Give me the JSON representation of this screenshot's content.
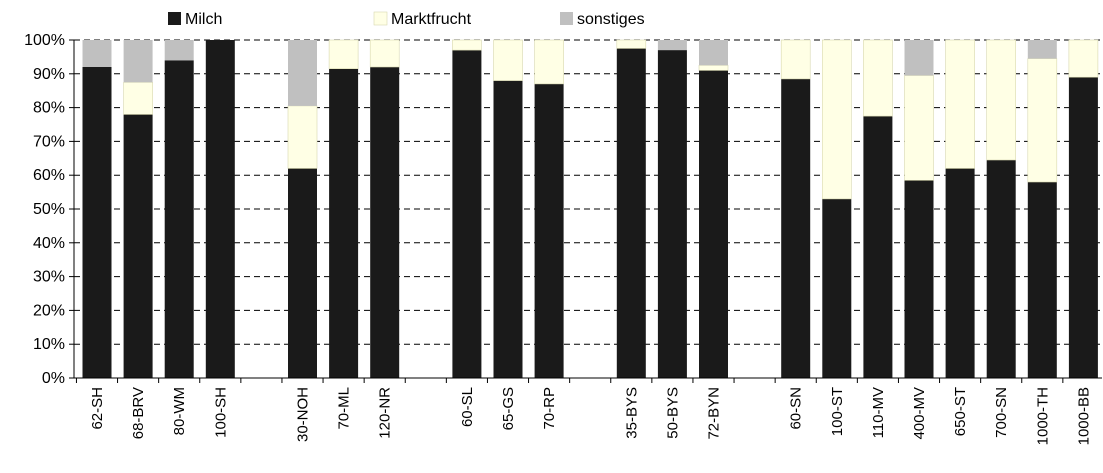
{
  "chart_data": {
    "type": "bar",
    "stacked": true,
    "percent": true,
    "title": "",
    "xlabel": "",
    "ylabel": "",
    "ylim": [
      0,
      100
    ],
    "yticks": [
      "0%",
      "10%",
      "20%",
      "30%",
      "40%",
      "50%",
      "60%",
      "70%",
      "80%",
      "90%",
      "100%"
    ],
    "grid": "horizontal-dashed",
    "legend_position": "top",
    "groups": [
      4,
      3,
      3,
      3,
      8
    ],
    "categories": [
      "62-SH",
      "68-BRV",
      "80-WM",
      "100-SH",
      "30-NOH",
      "70-ML",
      "120-NR",
      "60-SL",
      "65-GS",
      "70-RP",
      "35-BYS",
      "50-BYS",
      "72-BYN",
      "60-SN",
      "100-ST",
      "110-MV",
      "400-MV",
      "650-ST",
      "700-SN",
      "1000-TH",
      "1000-BB"
    ],
    "series": [
      {
        "name": "Milch",
        "color": "#1a1a1a",
        "values": [
          92,
          78,
          94,
          100,
          62,
          91.5,
          92,
          97,
          88,
          87,
          97.5,
          97,
          91,
          88.5,
          53,
          77.5,
          58.5,
          62,
          64.5,
          58,
          89
        ]
      },
      {
        "name": "Marktfrucht",
        "color": "#ffffe5",
        "values": [
          0,
          9.5,
          0,
          0,
          18.5,
          8.5,
          8,
          3,
          12,
          13,
          2.5,
          0,
          1.5,
          11.5,
          47,
          22.5,
          31,
          38,
          35.5,
          36.5,
          11
        ]
      },
      {
        "name": "sonstiges",
        "color": "#c0c0c0",
        "values": [
          8,
          12.5,
          6,
          0,
          19.5,
          0,
          0,
          0,
          0,
          0,
          0,
          3,
          7.5,
          0,
          0,
          0,
          10.5,
          0,
          0,
          5.5,
          0
        ]
      }
    ]
  }
}
